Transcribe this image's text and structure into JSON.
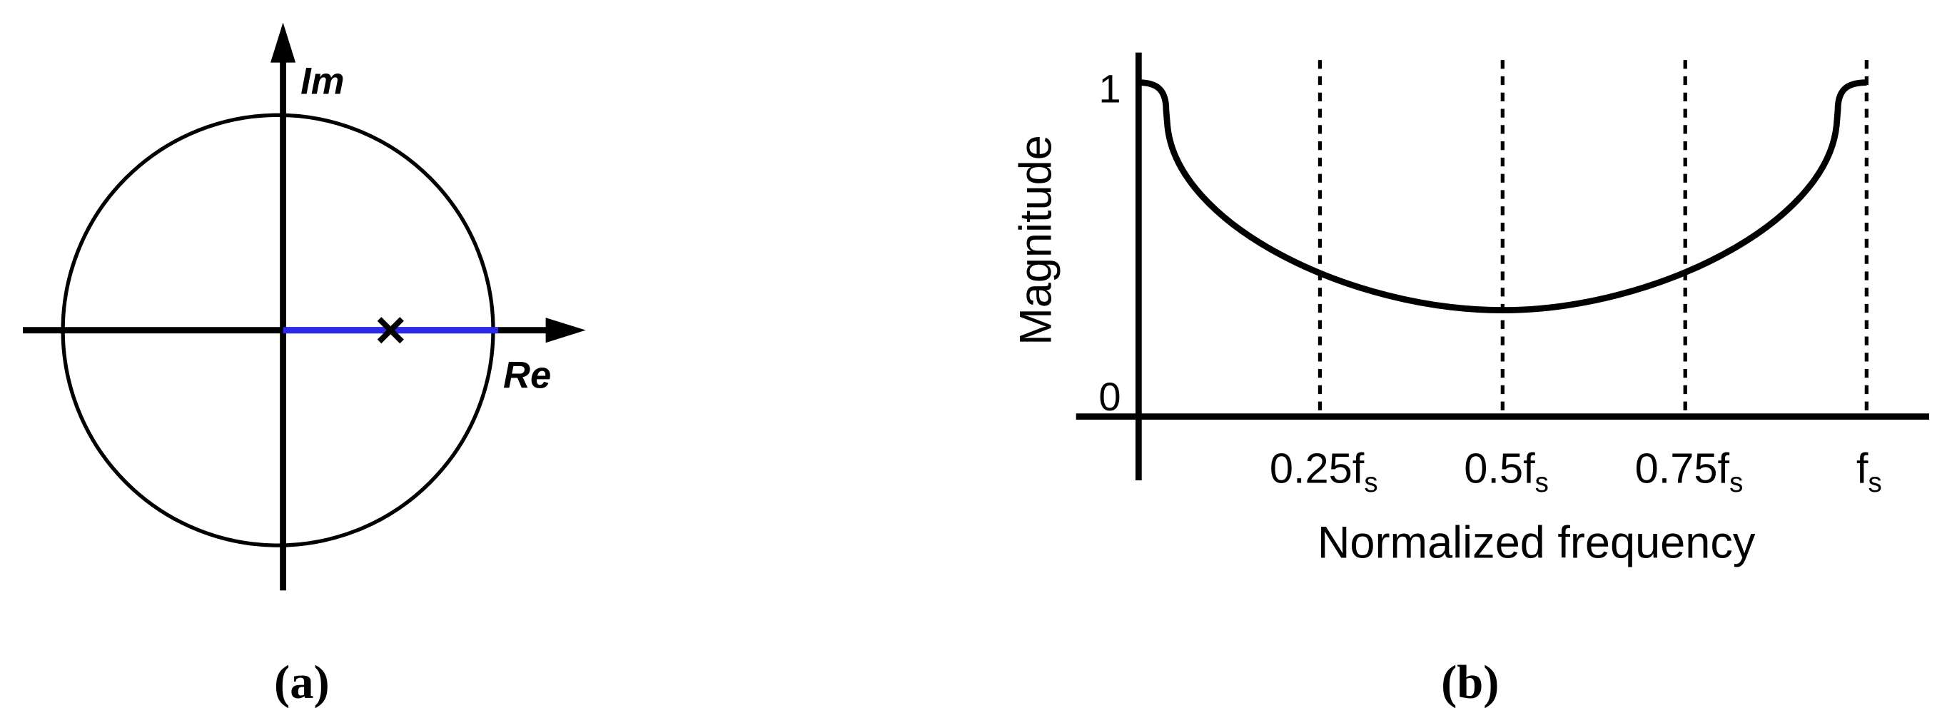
{
  "panel_a": {
    "im_label": "Im",
    "re_label": "Re",
    "caption": "(a)"
  },
  "panel_b": {
    "y_top_label": "1",
    "y_bottom_label": "0",
    "y_axis_label": "Magnitude",
    "x_tick_labels": [
      {
        "main": "0.25f",
        "sub": "s"
      },
      {
        "main": "0.5f",
        "sub": "s"
      },
      {
        "main": "0.75f",
        "sub": "s"
      },
      {
        "main": "f",
        "sub": "s"
      }
    ],
    "x_axis_label": "Normalized frequency",
    "caption": "(b)"
  }
}
